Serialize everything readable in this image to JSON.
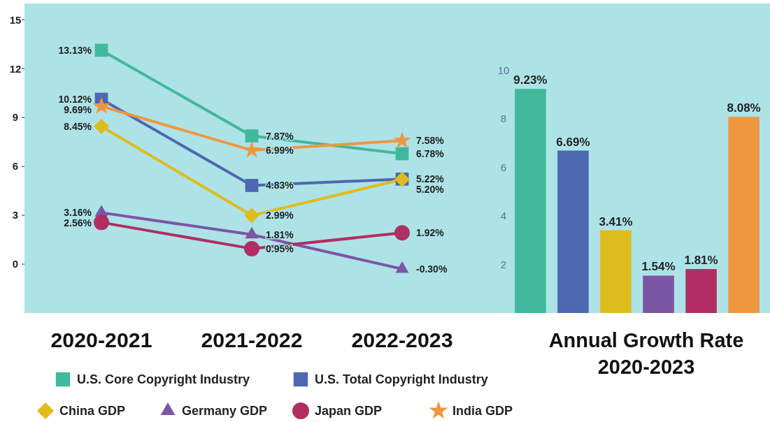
{
  "chart_data": [
    {
      "type": "line",
      "categories": [
        "2020-2021",
        "2021-2022",
        "2022-2023"
      ],
      "ylim": [
        -3,
        16
      ],
      "yticks": [
        0,
        3,
        6,
        9,
        12,
        15
      ],
      "legend": "bottom",
      "grid": false,
      "line_style": "solid",
      "series": [
        {
          "name": "U.S. Core Copyright Industry",
          "color": "#41b89c",
          "marker": "square",
          "values": [
            13.13,
            7.87,
            6.78
          ],
          "value_labels": [
            "13.13%",
            "7.87%",
            "6.78%"
          ]
        },
        {
          "name": "U.S. Total Copyright Industry",
          "color": "#4e67b1",
          "marker": "square",
          "values": [
            10.12,
            4.83,
            5.22
          ],
          "value_labels": [
            "10.12%",
            "4.83%",
            "5.22%"
          ]
        },
        {
          "name": "China GDP",
          "color": "#debc1e",
          "marker": "diamond",
          "values": [
            8.45,
            2.99,
            5.2
          ],
          "value_labels": [
            "8.45%",
            "2.99%",
            "5.20%"
          ]
        },
        {
          "name": "Germany GDP",
          "color": "#7b56a5",
          "marker": "triangle",
          "values": [
            3.16,
            1.81,
            -0.3
          ],
          "value_labels": [
            "3.16%",
            "1.81%",
            "-0.30%"
          ]
        },
        {
          "name": "Japan GDP",
          "color": "#b02e62",
          "marker": "circle",
          "values": [
            2.56,
            0.95,
            1.92
          ],
          "value_labels": [
            "2.56%",
            "0.95%",
            "1.92%"
          ]
        },
        {
          "name": "India GDP",
          "color": "#ef973f",
          "marker": "star",
          "values": [
            9.69,
            6.99,
            7.58
          ],
          "value_labels": [
            "9.69%",
            "6.99%",
            "7.58%"
          ]
        }
      ]
    },
    {
      "type": "bar",
      "xlabel": "Annual Growth Rate 2020-2023",
      "categories": [
        null,
        null,
        null,
        null,
        null,
        null
      ],
      "ylim": [
        0,
        12.75
      ],
      "yticks": [
        2,
        4,
        6,
        8,
        10
      ],
      "values": [
        9.23,
        6.69,
        3.41,
        1.54,
        1.81,
        8.08
      ],
      "value_labels": [
        "9.23%",
        "6.69%",
        "3.41%",
        "1.54%",
        "1.81%",
        "8.08%"
      ],
      "colors": [
        "#41b89c",
        "#4e67b1",
        "#debc1e",
        "#7b56a5",
        "#b02e62",
        "#ef973f"
      ]
    }
  ]
}
